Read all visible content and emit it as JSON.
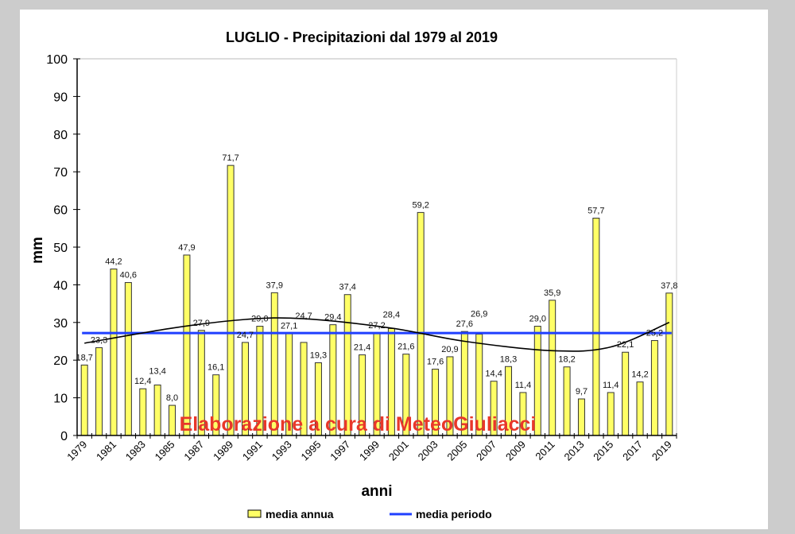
{
  "chart_data": {
    "type": "bar",
    "title": "LUGLIO - Precipitazioni dal 1979 al 2019",
    "xlabel": "anni",
    "ylabel": "mm",
    "ylim": [
      0,
      100
    ],
    "yticks": [
      0,
      10,
      20,
      30,
      40,
      50,
      60,
      70,
      80,
      90,
      100
    ],
    "categories": [
      1979,
      1980,
      1981,
      1982,
      1983,
      1984,
      1985,
      1986,
      1987,
      1988,
      1989,
      1990,
      1991,
      1992,
      1993,
      1994,
      1995,
      1996,
      1997,
      1998,
      1999,
      2000,
      2001,
      2002,
      2003,
      2004,
      2005,
      2006,
      2007,
      2008,
      2009,
      2010,
      2011,
      2012,
      2013,
      2014,
      2015,
      2016,
      2017,
      2018,
      2019
    ],
    "xtick_labels": [
      "1979",
      "1981",
      "1983",
      "1985",
      "1987",
      "1989",
      "1991",
      "1993",
      "1995",
      "1997",
      "1999",
      "2001",
      "2003",
      "2005",
      "2007",
      "2009",
      "2011",
      "2013",
      "2015",
      "2017",
      "2019"
    ],
    "series": [
      {
        "name": "media annua",
        "type": "bar",
        "color": "#ffff66",
        "values": [
          18.7,
          23.3,
          44.2,
          40.6,
          12.4,
          13.4,
          8.0,
          47.9,
          27.9,
          16.1,
          71.7,
          24.7,
          29.0,
          37.9,
          27.1,
          24.7,
          19.3,
          29.4,
          37.4,
          21.4,
          27.2,
          28.4,
          21.6,
          59.2,
          17.6,
          20.9,
          27.6,
          26.9,
          14.4,
          18.3,
          11.4,
          29.0,
          35.9,
          18.2,
          9.7,
          57.7,
          11.4,
          22.1,
          14.2,
          25.2,
          37.8
        ],
        "data_labels": [
          "18,7",
          "23,3",
          "44,2",
          "40,6",
          "12,4",
          "13,4",
          "8,0",
          "47,9",
          "27,9",
          "16,1",
          "71,7",
          "24,7",
          "29,0",
          "37,9",
          "27,1",
          "24,7",
          "19,3",
          "29,4",
          "37,4",
          "21,4",
          "27,2",
          "28,4",
          "21,6",
          "59,2",
          "17,6",
          "20,9",
          "27,6",
          "26,9",
          "14,4",
          "18,3",
          "11,4",
          "29,0",
          "35,9",
          "18,2",
          "9,7",
          "57,7",
          "11,4",
          "22,1",
          "14,2",
          "25,2",
          "37,8"
        ]
      },
      {
        "name": "media periodo",
        "type": "line",
        "color": "#1f3fff",
        "value": 27.2
      }
    ],
    "trendline": {
      "type": "polynomial",
      "color": "#000000",
      "points": [
        [
          1979,
          24.5
        ],
        [
          1985,
          28.5
        ],
        [
          1990,
          30.8
        ],
        [
          1994,
          31.0
        ],
        [
          2000,
          28.5
        ],
        [
          2005,
          25.0
        ],
        [
          2011,
          22.5
        ],
        [
          2015,
          23.5
        ],
        [
          2019,
          30.0
        ]
      ]
    },
    "legend": {
      "placement": "bottom",
      "entries": [
        "media annua",
        "media periodo"
      ]
    },
    "grid": false,
    "watermark": "Elaborazione a cura di MeteoGiuliacci"
  }
}
